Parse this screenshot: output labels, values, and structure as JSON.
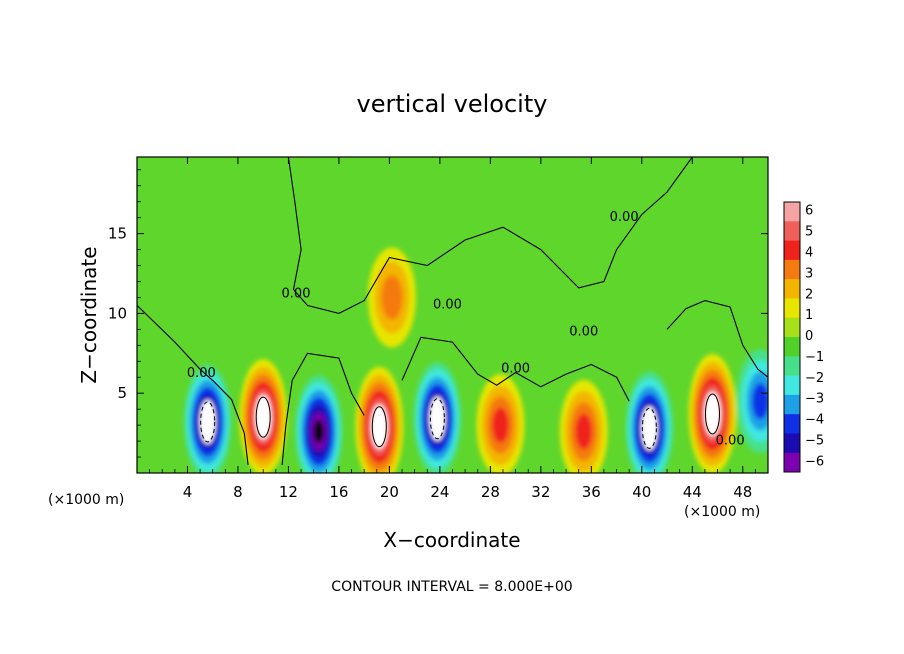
{
  "chart_data": {
    "type": "heatmap",
    "title": "vertical velocity",
    "xlabel": "X−coordinate",
    "ylabel": "Z−coordinate",
    "x_unit": "(×1000 m)",
    "x_unit_right": "(×1000 m)",
    "footer": "CONTOUR INTERVAL = 8.000E+00",
    "xlim": [
      0,
      50
    ],
    "ylim": [
      0,
      19.8
    ],
    "xticks": [
      4,
      8,
      12,
      16,
      20,
      24,
      28,
      32,
      36,
      40,
      44,
      48
    ],
    "xtick_labels": [
      "4",
      "8",
      "12",
      "16",
      "20",
      "24",
      "28",
      "32",
      "36",
      "40",
      "44",
      "48"
    ],
    "yticks": [
      5,
      10,
      15
    ],
    "ytick_labels": [
      "5",
      "10",
      "15"
    ],
    "colorbar": {
      "levels": [
        6,
        5,
        4,
        3,
        2,
        1,
        0,
        -1,
        -2,
        -3,
        -4,
        -5,
        -6
      ],
      "labels": [
        "6",
        "5",
        "4",
        "3",
        "2",
        "1",
        "0",
        "−1",
        "−2",
        "−3",
        "−4",
        "−5",
        "−6"
      ],
      "colors": [
        "#f6a3a3",
        "#f0605a",
        "#f0221c",
        "#f57a10",
        "#f3b500",
        "#e6e600",
        "#a6e01a",
        "#52d02a",
        "#46e08a",
        "#40e8e0",
        "#1ea0e6",
        "#1030e6",
        "#1a0cb0",
        "#7a00b0"
      ]
    },
    "contour_labels": [
      {
        "text": "0.00",
        "x": 5.1,
        "y": 6.0
      },
      {
        "text": "0.00",
        "x": 12.6,
        "y": 11.0
      },
      {
        "text": "0.00",
        "x": 24.6,
        "y": 10.3
      },
      {
        "text": "0.00",
        "x": 30.0,
        "y": 6.3
      },
      {
        "text": "0.00",
        "x": 35.4,
        "y": 8.6
      },
      {
        "text": "0.00",
        "x": 38.6,
        "y": 15.8
      },
      {
        "text": "0.00",
        "x": 47.0,
        "y": 1.8
      }
    ],
    "cells": [
      {
        "x": 5.6,
        "z": 3.2,
        "w": -6.5
      },
      {
        "x": 10.0,
        "z": 3.5,
        "w": 7.0
      },
      {
        "x": 14.4,
        "z": 2.6,
        "w": -6.2
      },
      {
        "x": 19.2,
        "z": 2.9,
        "w": 8.0
      },
      {
        "x": 20.2,
        "z": 11.0,
        "w": 3.0
      },
      {
        "x": 23.8,
        "z": 3.4,
        "w": -6.3
      },
      {
        "x": 28.8,
        "z": 3.0,
        "w": 3.5
      },
      {
        "x": 35.4,
        "z": 2.6,
        "w": 3.8
      },
      {
        "x": 40.6,
        "z": 2.8,
        "w": -6.4
      },
      {
        "x": 45.6,
        "z": 3.7,
        "w": 8.0
      },
      {
        "x": 49.4,
        "z": 4.5,
        "w": -4.0
      }
    ]
  }
}
